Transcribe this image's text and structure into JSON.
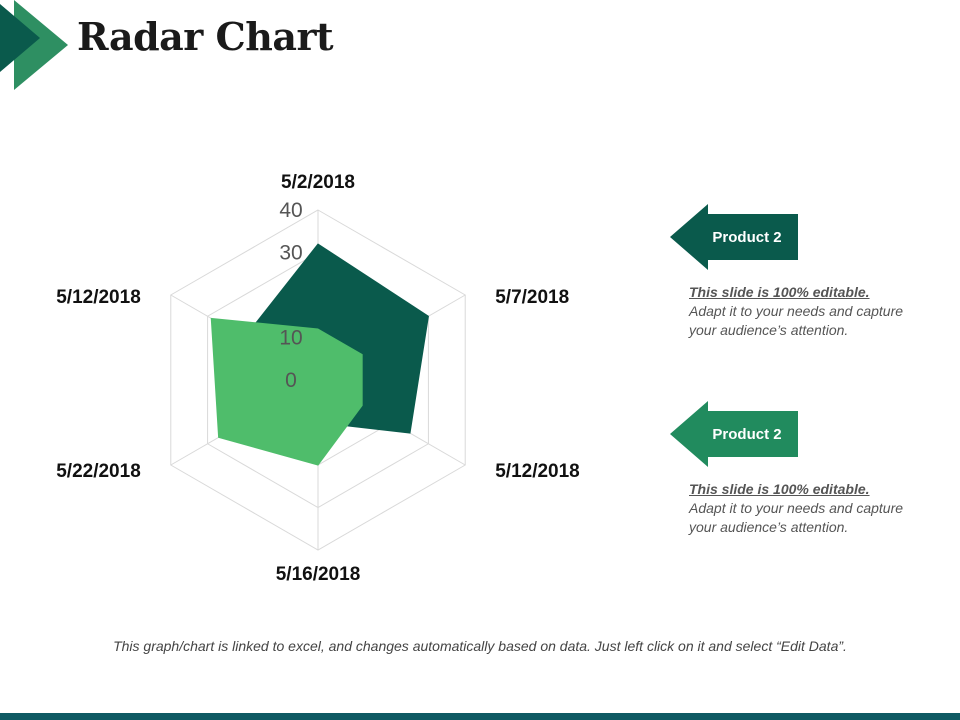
{
  "slide": {
    "title": "Radar Chart",
    "footnote": "This graph/chart is linked to excel, and changes automatically based on data. Just left click on it and select “Edit Data”."
  },
  "colors": {
    "accent_dark": "#0a5a4c",
    "accent_mid": "#218b5e",
    "accent_light": "#4fbd6b",
    "grid": "#d9d9d9",
    "bottom_bar": "#0f5a63"
  },
  "callouts": [
    {
      "label": "Product 2",
      "color": "#0a5a4c",
      "note_heading": "This slide is 100% editable.",
      "note_body": "Adapt it to your needs and capture your audience’s attention."
    },
    {
      "label": "Product 2",
      "color": "#218b5e",
      "note_heading": "This slide is 100% editable.",
      "note_body": "Adapt it to your needs and capture your audience’s attention."
    }
  ],
  "chart_data": {
    "type": "radar",
    "categories": [
      "5/2/2018",
      "5/7/2018",
      "5/12/2018",
      "5/16/2018",
      "5/22/2018",
      "5/12/2018"
    ],
    "axis_ticks": [
      0,
      10,
      30,
      40
    ],
    "scale": [
      0,
      40
    ],
    "grid": true,
    "series": [
      {
        "values": [
          32,
          30,
          25,
          10,
          10,
          20
        ],
        "color": "#0a5a4c"
      },
      {
        "values": [
          12,
          12,
          12,
          20,
          27,
          29
        ],
        "color": "#4fbd6b"
      }
    ]
  }
}
